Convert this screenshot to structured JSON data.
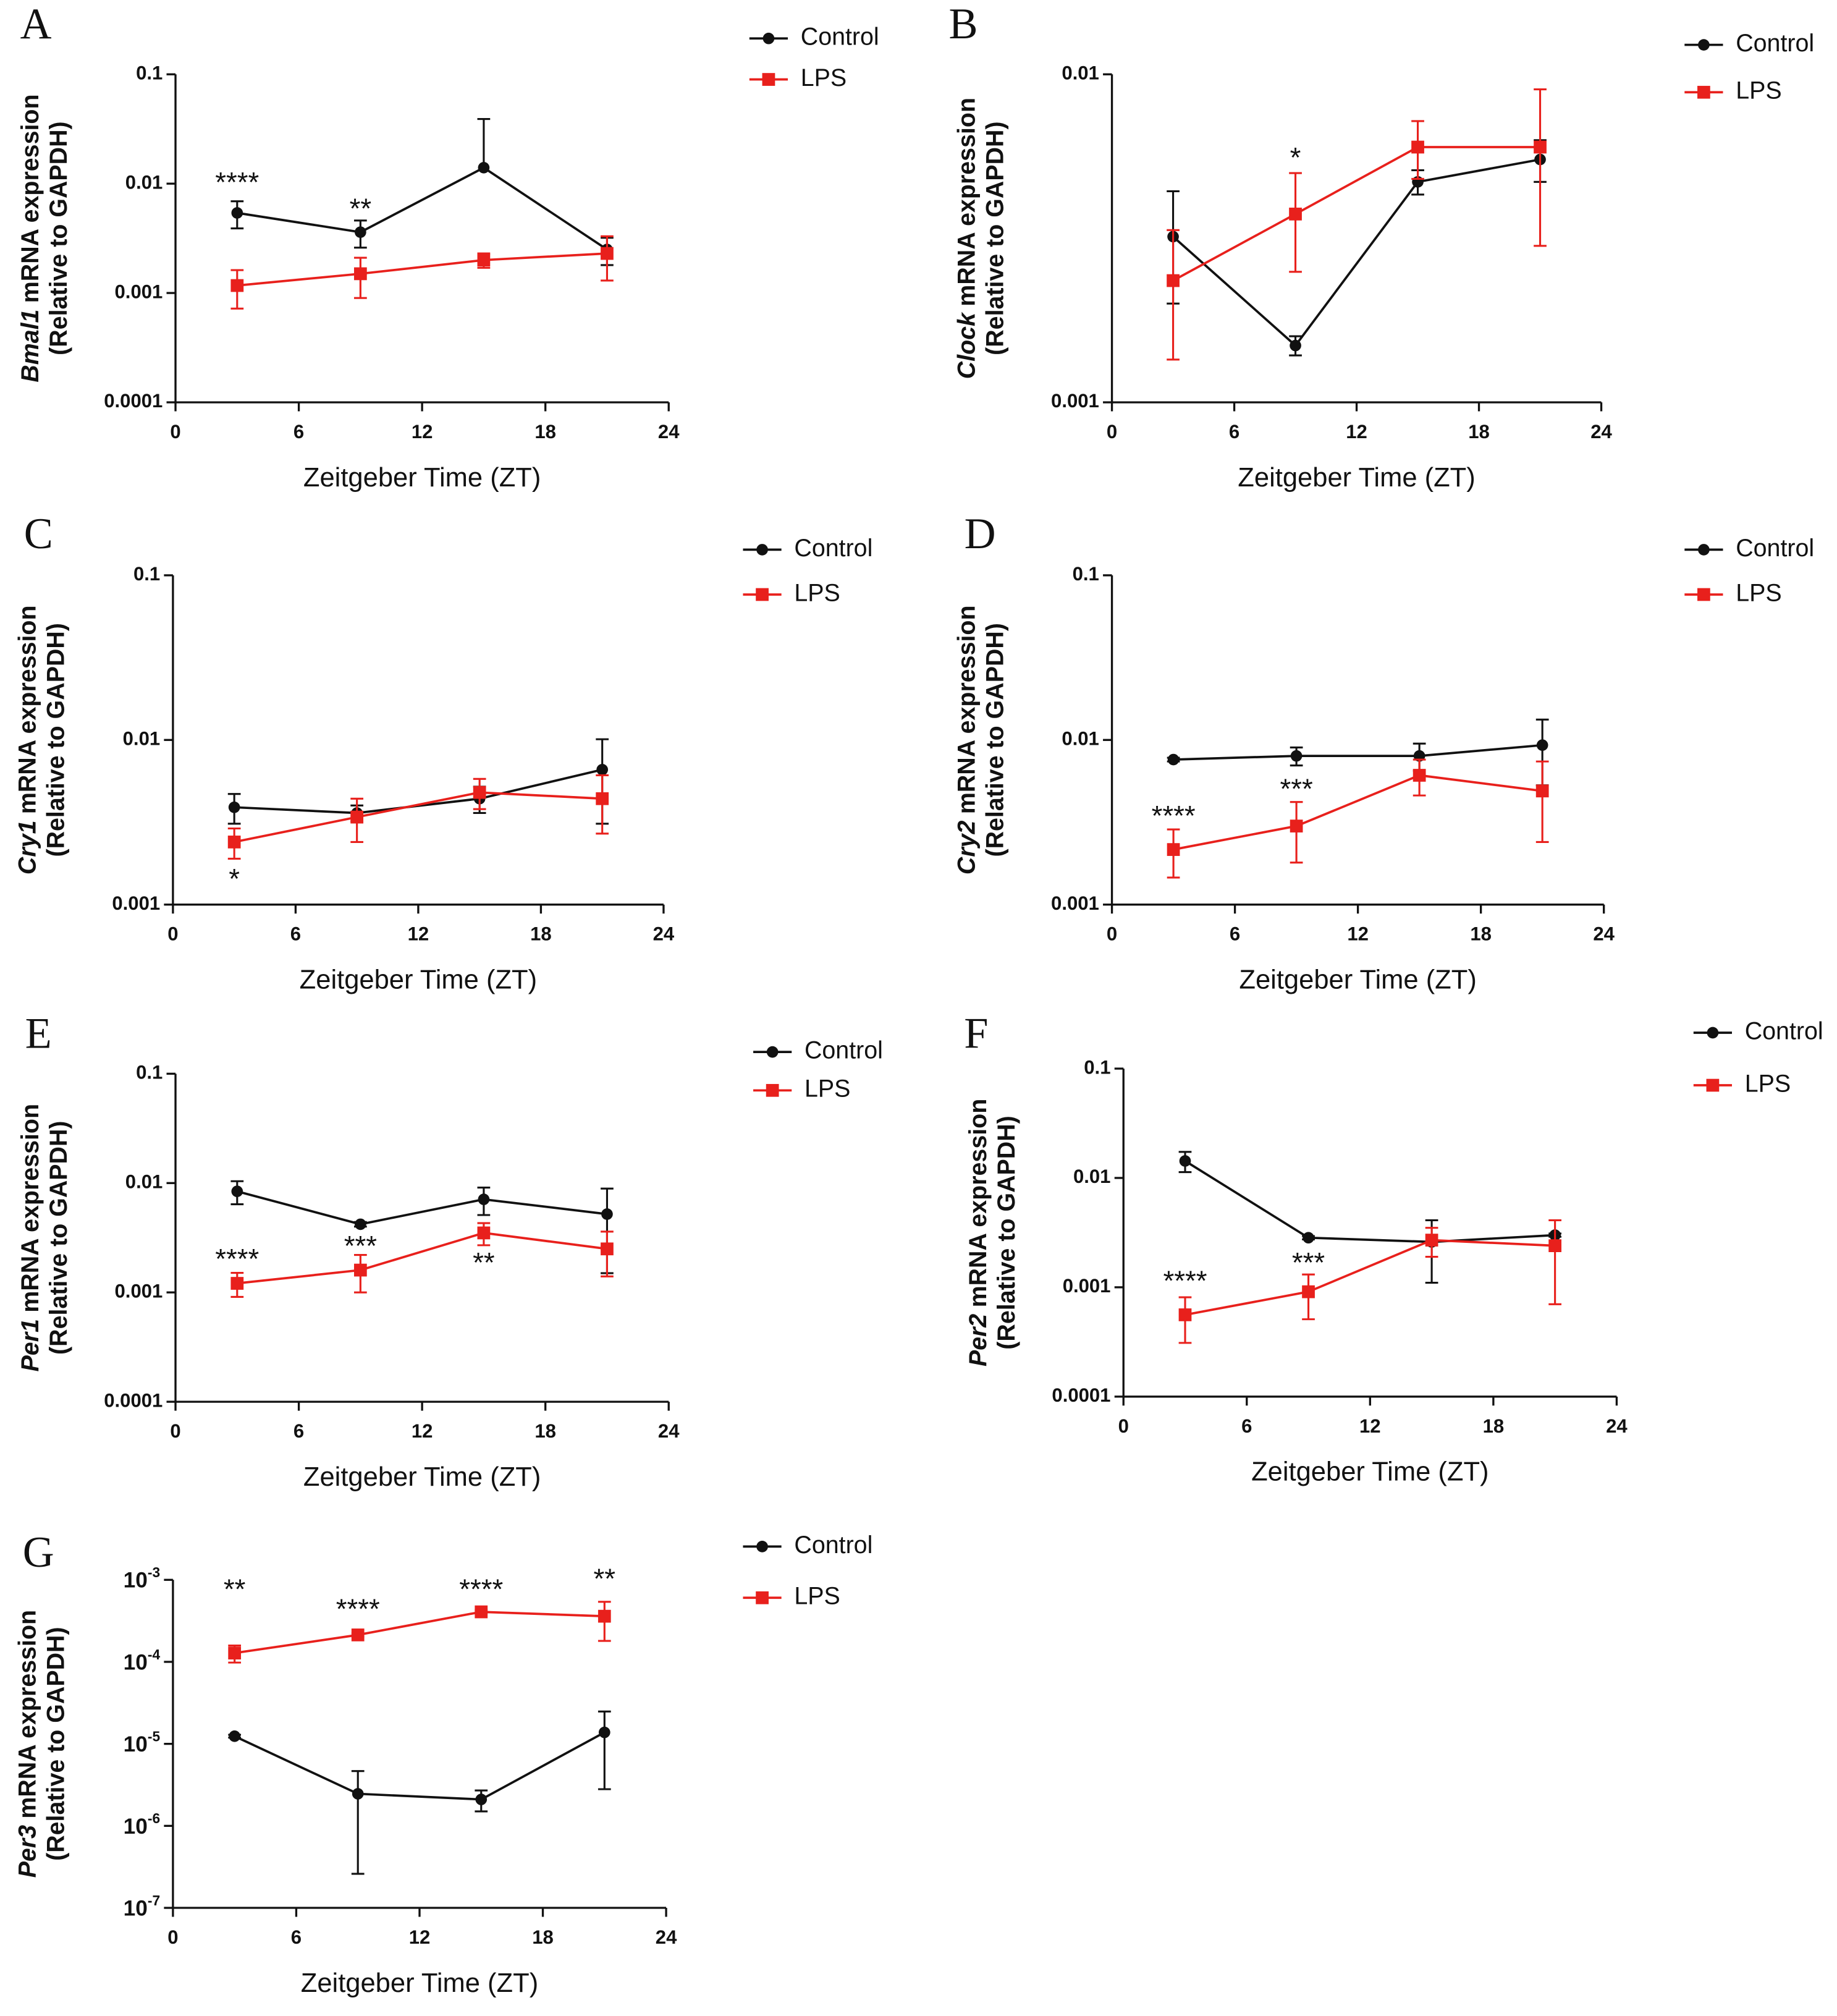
{
  "chart_data": [
    {
      "type": "line",
      "panel": "A",
      "gene": "Bmal1",
      "ylabel": "mRNA expression",
      "ylabel2": "(Relative to GAPDH)",
      "xlabel": "Zeitgeber Time (ZT)",
      "x": [
        3,
        9,
        15,
        21
      ],
      "xlim": [
        0,
        24
      ],
      "xticks": [
        0,
        6,
        12,
        18,
        24
      ],
      "yscale": "log",
      "ylim": [
        0.0001,
        0.1
      ],
      "yticks": [
        0.0001,
        0.001,
        0.01,
        0.1
      ],
      "legend": "upper right",
      "series": [
        {
          "name": "Control",
          "color": "#111111",
          "marker": "circle",
          "values": [
            0.0054,
            0.0036,
            0.014,
            0.0025
          ],
          "errors": [
            0.0015,
            0.001,
            0.025,
            0.0007
          ]
        },
        {
          "name": "LPS",
          "color": "#e8201c",
          "marker": "square",
          "values": [
            0.00117,
            0.0015,
            0.002,
            0.0023
          ],
          "errors": [
            0.00045,
            0.0006,
            0.0003,
            0.001
          ]
        }
      ],
      "annotations": [
        {
          "text": "****",
          "x": 3,
          "y": 0.0104
        },
        {
          "text": "**",
          "x": 9,
          "y": 0.006
        }
      ]
    },
    {
      "type": "line",
      "panel": "B",
      "gene": "Clock",
      "ylabel": "mRNA expression",
      "ylabel2": "(Relative to GAPDH)",
      "xlabel": "Zeitgeber Time (ZT)",
      "x": [
        3,
        9,
        15,
        21
      ],
      "xlim": [
        0,
        24
      ],
      "xticks": [
        0,
        6,
        12,
        18,
        24
      ],
      "yscale": "log",
      "ylim": [
        0.001,
        0.01
      ],
      "yticks": [
        0.001,
        0.01
      ],
      "legend": "upper right",
      "series": [
        {
          "name": "Control",
          "color": "#111111",
          "marker": "circle",
          "values": [
            0.0032,
            0.00149,
            0.0047,
            0.0055
          ],
          "errors": [
            0.0012,
            0.0001,
            0.0004,
            0.0008
          ]
        },
        {
          "name": "LPS",
          "color": "#e8201c",
          "marker": "square",
          "values": [
            0.00235,
            0.00375,
            0.006,
            0.006
          ],
          "errors": [
            0.001,
            0.00125,
            0.0012,
            0.003
          ]
        }
      ],
      "annotations": [
        {
          "text": "*",
          "x": 9,
          "y": 0.0056
        }
      ]
    },
    {
      "type": "line",
      "panel": "C",
      "gene": "Cry1",
      "ylabel": "mRNA expression",
      "ylabel2": "(Relative to GAPDH)",
      "xlabel": "Zeitgeber Time (ZT)",
      "x": [
        3,
        9,
        15,
        21
      ],
      "xlim": [
        0,
        24
      ],
      "xticks": [
        0,
        6,
        12,
        18,
        24
      ],
      "yscale": "log",
      "ylim": [
        0.001,
        0.1
      ],
      "yticks": [
        0.001,
        0.01,
        0.1
      ],
      "legend": "upper right",
      "series": [
        {
          "name": "Control",
          "color": "#111111",
          "marker": "circle",
          "values": [
            0.0039,
            0.0036,
            0.0044,
            0.0066
          ],
          "errors": [
            0.0008,
            0.0004,
            0.0008,
            0.0035
          ]
        },
        {
          "name": "LPS",
          "color": "#e8201c",
          "marker": "square",
          "values": [
            0.0024,
            0.0034,
            0.0048,
            0.0044
          ],
          "errors": [
            0.0005,
            0.001,
            0.001,
            0.0017
          ]
        }
      ],
      "annotations": [
        {
          "text": "*",
          "x": 3,
          "y": 0.00145
        }
      ]
    },
    {
      "type": "line",
      "panel": "D",
      "gene": "Cry2",
      "ylabel": "mRNA expression",
      "ylabel2": "(Relative to GAPDH)",
      "xlabel": "Zeitgeber Time (ZT)",
      "x": [
        3,
        9,
        15,
        21
      ],
      "xlim": [
        0,
        24
      ],
      "xticks": [
        0,
        6,
        12,
        18,
        24
      ],
      "yscale": "log",
      "ylim": [
        0.001,
        0.1
      ],
      "yticks": [
        0.001,
        0.01,
        0.1
      ],
      "legend": "upper right",
      "series": [
        {
          "name": "Control",
          "color": "#111111",
          "marker": "circle",
          "values": [
            0.0076,
            0.008,
            0.008,
            0.0093
          ],
          "errors": [
            0.0002,
            0.001,
            0.0015,
            0.004
          ]
        },
        {
          "name": "LPS",
          "color": "#e8201c",
          "marker": "square",
          "values": [
            0.00216,
            0.003,
            0.0061,
            0.0049
          ],
          "errors": [
            0.0007,
            0.0012,
            0.0015,
            0.0025
          ]
        }
      ],
      "annotations": [
        {
          "text": "****",
          "x": 3,
          "y": 0.0035
        },
        {
          "text": "***",
          "x": 9,
          "y": 0.0051
        }
      ]
    },
    {
      "type": "line",
      "panel": "E",
      "gene": "Per1",
      "ylabel": "mRNA expression",
      "ylabel2": "(Relative to GAPDH)",
      "xlabel": "Zeitgeber Time (ZT)",
      "x": [
        3,
        9,
        15,
        21
      ],
      "xlim": [
        0,
        24
      ],
      "xticks": [
        0,
        6,
        12,
        18,
        24
      ],
      "yscale": "log",
      "ylim": [
        0.0001,
        0.1
      ],
      "yticks": [
        0.0001,
        0.001,
        0.01,
        0.1
      ],
      "legend": "upper right",
      "series": [
        {
          "name": "Control",
          "color": "#111111",
          "marker": "circle",
          "values": [
            0.0084,
            0.0042,
            0.0071,
            0.0052
          ],
          "errors": [
            0.002,
            0.0002,
            0.002,
            0.0037
          ]
        },
        {
          "name": "LPS",
          "color": "#e8201c",
          "marker": "square",
          "values": [
            0.00121,
            0.0016,
            0.0035,
            0.0025
          ],
          "errors": [
            0.0003,
            0.0006,
            0.0008,
            0.0011
          ]
        }
      ],
      "annotations": [
        {
          "text": "****",
          "x": 3,
          "y": 0.00205
        },
        {
          "text": "***",
          "x": 9,
          "y": 0.0027
        },
        {
          "text": "**",
          "x": 15,
          "y": 0.0019
        }
      ]
    },
    {
      "type": "line",
      "panel": "F",
      "gene": "Per2",
      "ylabel": "mRNA expression",
      "ylabel2": "(Relative to GAPDH)",
      "xlabel": "Zeitgeber Time (ZT)",
      "x": [
        3,
        9,
        15,
        21
      ],
      "xlim": [
        0,
        24
      ],
      "xticks": [
        0,
        6,
        12,
        18,
        24
      ],
      "yscale": "log",
      "ylim": [
        0.0001,
        0.1
      ],
      "yticks": [
        0.0001,
        0.001,
        0.01,
        0.1
      ],
      "legend": "upper right",
      "series": [
        {
          "name": "Control",
          "color": "#111111",
          "marker": "circle",
          "values": [
            0.0143,
            0.00284,
            0.0026,
            0.003
          ],
          "errors": [
            0.003,
            0.0001,
            0.0015,
            0.0001
          ]
        },
        {
          "name": "LPS",
          "color": "#e8201c",
          "marker": "square",
          "values": [
            0.00056,
            0.00091,
            0.0027,
            0.0024
          ],
          "errors": [
            0.00025,
            0.0004,
            0.0008,
            0.0017
          ]
        }
      ],
      "annotations": [
        {
          "text": "****",
          "x": 3,
          "y": 0.00116
        },
        {
          "text": "***",
          "x": 9,
          "y": 0.0017
        }
      ]
    },
    {
      "type": "line",
      "panel": "G",
      "gene": "Per3",
      "ylabel": "mRNA expression",
      "ylabel2": "(Relative to GAPDH)",
      "xlabel": "Zeitgeber Time (ZT)",
      "x": [
        3,
        9,
        15,
        21
      ],
      "xlim": [
        0,
        24
      ],
      "xticks": [
        0,
        6,
        12,
        18,
        24
      ],
      "yscale": "log",
      "ylim": [
        1e-07,
        0.001
      ],
      "yticks": [
        {
          "value": 1e-07,
          "label": "10",
          "exponent": "-7"
        },
        {
          "value": 1e-06,
          "label": "10",
          "exponent": "-6"
        },
        {
          "value": 1e-05,
          "label": "10",
          "exponent": "-5"
        },
        {
          "value": 0.0001,
          "label": "10",
          "exponent": "-4"
        },
        {
          "value": 0.001,
          "label": "10",
          "exponent": "-3"
        }
      ],
      "legend": "upper right",
      "series": [
        {
          "name": "Control",
          "color": "#111111",
          "marker": "circle",
          "values": [
            1.24e-05,
            2.46e-06,
            2.1e-06,
            1.38e-05
          ],
          "errors": [
            5e-07,
            2.2e-06,
            6e-07,
            1.1e-05
          ]
        },
        {
          "name": "LPS",
          "color": "#e8201c",
          "marker": "square",
          "values": [
            0.000128,
            0.000213,
            0.000407,
            0.00036
          ],
          "errors": [
            3e-05,
            1e-05,
            2e-05,
            0.00018
          ]
        }
      ],
      "annotations": [
        {
          "text": "**",
          "x": 3,
          "y": 0.00078
        },
        {
          "text": "****",
          "x": 9,
          "y": 0.00045
        },
        {
          "text": "****",
          "x": 15,
          "y": 0.00078
        },
        {
          "text": "**",
          "x": 21,
          "y": 0.00105
        }
      ]
    }
  ]
}
